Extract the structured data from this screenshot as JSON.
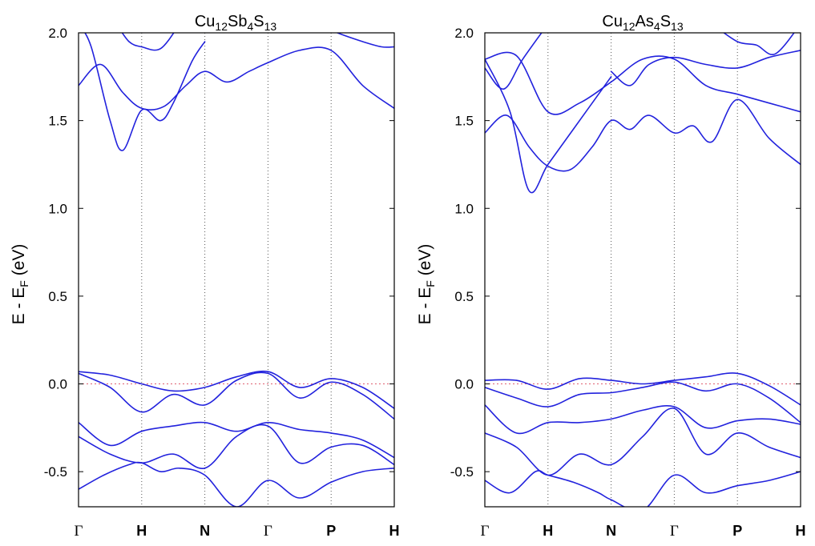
{
  "figure": {
    "panels": [
      {
        "title": {
          "elem1": "Cu",
          "sub1": "12",
          "elem2": "Sb",
          "sub2": "4",
          "elem3": "S",
          "sub3": "13"
        },
        "ylabel": {
          "pre": "E - E",
          "sub": "F",
          "post": " (eV)"
        }
      },
      {
        "title": {
          "elem1": "Cu",
          "sub1": "12",
          "elem2": "As",
          "sub2": "4",
          "elem3": "S",
          "sub3": "13"
        },
        "ylabel": {
          "pre": "E - E",
          "sub": "F",
          "post": " (eV)"
        }
      }
    ]
  },
  "chart_data": [
    {
      "type": "line",
      "title": "Cu12Sb4S13",
      "ylabel": "E - EF (eV)",
      "ylim": [
        -0.7,
        2.0
      ],
      "yticks": [
        "2.0",
        "1.5",
        "1.0",
        "0.5",
        "0.0",
        "-0.5"
      ],
      "ytick_values": [
        2.0,
        1.5,
        1.0,
        0.5,
        0.0,
        -0.5
      ],
      "kpath": [
        "Γ",
        "H",
        "N",
        "Γ",
        "P",
        "H"
      ],
      "kpath_positions": [
        0,
        1,
        2,
        3,
        4,
        5
      ],
      "fermi_level": 0.0,
      "line_color": "#2222dd",
      "fermi_color": "#e06070",
      "series": [
        {
          "x": [
            0,
            0.35,
            0.7,
            1.0,
            1.35,
            1.7,
            2.0,
            2.35,
            2.7,
            3.0,
            3.5,
            4.0,
            4.5,
            5.0
          ],
          "y": [
            1.7,
            1.82,
            1.66,
            1.57,
            1.58,
            1.7,
            1.78,
            1.72,
            1.78,
            1.83,
            1.9,
            1.9,
            1.7,
            1.57
          ]
        },
        {
          "x": [
            0,
            0.2,
            0.5,
            0.7,
            1.0,
            1.3,
            1.5,
            1.8,
            2.0
          ],
          "y": [
            2.05,
            1.92,
            1.5,
            1.33,
            1.56,
            1.5,
            1.6,
            1.84,
            1.95
          ]
        },
        {
          "x": [
            0.6,
            0.8,
            1.0,
            1.3,
            1.6
          ],
          "y": [
            2.05,
            1.95,
            1.92,
            1.91,
            2.05
          ]
        },
        {
          "x": [
            3.8,
            4.1,
            4.5,
            4.8,
            5.0
          ],
          "y": [
            2.05,
            2.0,
            1.95,
            1.92,
            1.92
          ]
        },
        {
          "x": [
            0,
            0.5,
            1.0,
            1.5,
            2.0,
            2.5,
            3.0,
            3.5,
            4.0,
            4.5,
            5.0
          ],
          "y": [
            0.07,
            0.05,
            0.0,
            -0.04,
            -0.02,
            0.04,
            0.07,
            -0.02,
            0.03,
            -0.02,
            -0.14
          ]
        },
        {
          "x": [
            0,
            0.5,
            1.0,
            1.5,
            2.0,
            2.5,
            3.0,
            3.5,
            4.0,
            4.5,
            5.0
          ],
          "y": [
            0.06,
            -0.02,
            -0.16,
            -0.06,
            -0.12,
            0.02,
            0.06,
            -0.08,
            0.01,
            -0.06,
            -0.2
          ]
        },
        {
          "x": [
            0,
            0.5,
            1.0,
            1.5,
            2.0,
            2.5,
            3.0,
            3.5,
            4.0,
            4.5,
            5.0
          ],
          "y": [
            -0.22,
            -0.35,
            -0.27,
            -0.24,
            -0.22,
            -0.27,
            -0.22,
            -0.26,
            -0.28,
            -0.32,
            -0.42
          ]
        },
        {
          "x": [
            0,
            0.5,
            1.0,
            1.5,
            2.0,
            2.5,
            3.0,
            3.5,
            4.0,
            4.5,
            5.0
          ],
          "y": [
            -0.3,
            -0.4,
            -0.45,
            -0.4,
            -0.48,
            -0.3,
            -0.24,
            -0.45,
            -0.36,
            -0.35,
            -0.46
          ]
        },
        {
          "x": [
            0,
            0.4,
            0.8,
            1.0,
            1.3,
            1.6,
            2.0,
            2.5,
            3.0,
            3.5,
            4.0,
            4.5,
            5.0
          ],
          "y": [
            -0.6,
            -0.52,
            -0.46,
            -0.45,
            -0.5,
            -0.48,
            -0.52,
            -0.7,
            -0.55,
            -0.65,
            -0.56,
            -0.5,
            -0.48
          ]
        }
      ]
    },
    {
      "type": "line",
      "title": "Cu12As4S13",
      "ylabel": "E - EF (eV)",
      "ylim": [
        -0.7,
        2.0
      ],
      "yticks": [
        "2.0",
        "1.5",
        "1.0",
        "0.5",
        "0.0",
        "-0.5"
      ],
      "ytick_values": [
        2.0,
        1.5,
        1.0,
        0.5,
        0.0,
        -0.5
      ],
      "kpath": [
        "Γ",
        "H",
        "N",
        "Γ",
        "P",
        "H"
      ],
      "kpath_positions": [
        0,
        1,
        2,
        3,
        4,
        5
      ],
      "fermi_level": 0.0,
      "line_color": "#2222dd",
      "fermi_color": "#e06070",
      "series": [
        {
          "x": [
            0,
            0.35,
            0.7,
            1.0,
            1.35,
            1.7,
            2.0,
            2.3,
            2.6,
            3.0,
            3.3,
            3.6,
            4.0,
            4.5,
            5.0
          ],
          "y": [
            1.43,
            1.53,
            1.35,
            1.24,
            1.22,
            1.35,
            1.5,
            1.45,
            1.53,
            1.43,
            1.47,
            1.38,
            1.62,
            1.4,
            1.25
          ]
        },
        {
          "x": [
            0,
            0.4,
            0.7,
            1.0,
            1.4,
            2.0
          ],
          "y": [
            1.85,
            1.55,
            1.1,
            1.25,
            1.45,
            1.75
          ]
        },
        {
          "x": [
            0,
            0.5,
            1.0,
            1.5,
            2.0,
            2.5,
            3.0,
            3.5,
            4.0,
            4.5,
            5.0
          ],
          "y": [
            1.85,
            1.87,
            1.55,
            1.6,
            1.72,
            1.85,
            1.85,
            1.7,
            1.65,
            1.6,
            1.55
          ]
        },
        {
          "x": [
            0,
            0.3,
            0.6,
            1.0
          ],
          "y": [
            1.8,
            1.68,
            1.85,
            2.05
          ]
        },
        {
          "x": [
            2.0,
            2.3,
            2.6,
            3.0,
            3.5,
            4.0,
            4.5,
            5.0
          ],
          "y": [
            1.78,
            1.7,
            1.82,
            1.86,
            1.82,
            1.8,
            1.86,
            1.9
          ]
        },
        {
          "x": [
            3.6,
            4.0,
            4.3,
            4.6,
            5.0
          ],
          "y": [
            2.05,
            1.95,
            1.93,
            1.88,
            2.05
          ]
        },
        {
          "x": [
            0,
            0.5,
            1.0,
            1.5,
            2.0,
            2.5,
            3.0,
            3.5,
            4.0,
            4.5,
            5.0
          ],
          "y": [
            0.02,
            0.02,
            -0.03,
            0.03,
            0.02,
            0.0,
            0.02,
            0.04,
            0.06,
            -0.01,
            -0.12
          ]
        },
        {
          "x": [
            0,
            0.5,
            1.0,
            1.5,
            2.0,
            2.5,
            3.0,
            3.5,
            4.0,
            4.5,
            5.0
          ],
          "y": [
            -0.02,
            -0.08,
            -0.13,
            -0.06,
            -0.05,
            -0.02,
            0.01,
            -0.04,
            0.0,
            -0.08,
            -0.22
          ]
        },
        {
          "x": [
            0,
            0.5,
            1.0,
            1.5,
            2.0,
            2.5,
            3.0,
            3.5,
            4.0,
            4.5,
            5.0
          ],
          "y": [
            -0.12,
            -0.28,
            -0.22,
            -0.22,
            -0.2,
            -0.15,
            -0.13,
            -0.25,
            -0.21,
            -0.2,
            -0.23
          ]
        },
        {
          "x": [
            0,
            0.5,
            1.0,
            1.5,
            2.0,
            2.5,
            3.0,
            3.5,
            4.0,
            4.5,
            5.0
          ],
          "y": [
            -0.28,
            -0.36,
            -0.52,
            -0.4,
            -0.46,
            -0.3,
            -0.14,
            -0.4,
            -0.28,
            -0.36,
            -0.42
          ]
        },
        {
          "x": [
            0,
            0.4,
            0.8,
            1.0,
            1.4,
            1.8,
            2.0,
            2.5,
            3.0,
            3.5,
            4.0,
            4.5,
            5.0
          ],
          "y": [
            -0.55,
            -0.62,
            -0.5,
            -0.52,
            -0.56,
            -0.62,
            -0.66,
            -0.72,
            -0.52,
            -0.62,
            -0.58,
            -0.55,
            -0.5
          ]
        }
      ]
    }
  ]
}
